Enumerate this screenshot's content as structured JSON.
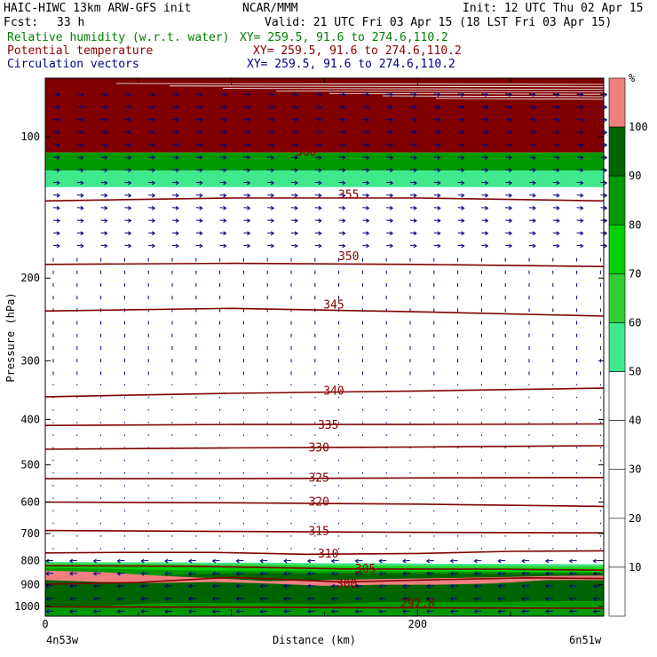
{
  "header": {
    "title_left": "HAIC-HIWC 13km ARW-GFS init",
    "title_center": "NCAR/MMM",
    "init": "Init: 12 UTC Thu 02 Apr 15",
    "fcst_label": "Fcst:",
    "fcst_value": "33 h",
    "valid": "Valid: 21 UTC Fri 03 Apr 15 (18 LST Fri 03 Apr 15)",
    "rh_label": "Relative humidity (w.r.t. water)",
    "rh_xy": "XY= 259.5, 91.6 to 274.6,110.2",
    "pt_label": "Potential temperature",
    "pt_xy": "XY= 259.5, 91.6 to 274.6,110.2",
    "cv_label": "Circulation vectors",
    "cv_xy": "XY= 259.5, 91.6 to 274.6,110.2"
  },
  "colors": {
    "rh_50_60": "#40e88c",
    "rh_60_70": "#32cd32",
    "rh_70_80": "#00d000",
    "rh_80_90": "#009900",
    "rh_90_100": "#006400",
    "rh_over_100": "#f08080",
    "top_band": "#800000",
    "theta": "#800000",
    "vectors": "#000080"
  },
  "chart_data": {
    "type": "cross-section",
    "ylabel": "Pressure (hPa)",
    "xlabel": "Distance (km)",
    "y_scale": "log",
    "ylim": [
      1050,
      75
    ],
    "xlim": [
      0,
      300
    ],
    "yticks": [
      100,
      200,
      300,
      400,
      500,
      600,
      700,
      800,
      900,
      1000
    ],
    "xticks": [
      0,
      200
    ],
    "x_endpoints": [
      "4n53w",
      "6n51w"
    ],
    "colorbar": {
      "unit": "%",
      "levels": [
        10,
        20,
        30,
        40,
        50,
        60,
        70,
        80,
        90,
        100
      ]
    },
    "theta_labels": [
      {
        "text": "360",
        "x": 140,
        "p": 108
      },
      {
        "text": "355",
        "x": 163,
        "p": 133
      },
      {
        "text": "350",
        "x": 163,
        "p": 180
      },
      {
        "text": "345",
        "x": 155,
        "p": 228
      },
      {
        "text": "340",
        "x": 155,
        "p": 348
      },
      {
        "text": "335",
        "x": 152,
        "p": 412
      },
      {
        "text": "330",
        "x": 147,
        "p": 460
      },
      {
        "text": "325",
        "x": 147,
        "p": 533
      },
      {
        "text": "320",
        "x": 147,
        "p": 600
      },
      {
        "text": "315",
        "x": 147,
        "p": 692
      },
      {
        "text": "310",
        "x": 152,
        "p": 774
      },
      {
        "text": "305",
        "x": 172,
        "p": 833
      },
      {
        "text": "300",
        "x": 162,
        "p": 898
      },
      {
        "text": "297.8",
        "x": 200,
        "p": 987
      }
    ],
    "theta_contours": [
      {
        "level": 355,
        "points": [
          [
            0,
            137
          ],
          [
            100,
            135
          ],
          [
            200,
            135
          ],
          [
            300,
            137
          ]
        ]
      },
      {
        "level": 350,
        "points": [
          [
            0,
            187
          ],
          [
            100,
            186
          ],
          [
            200,
            187
          ],
          [
            300,
            189
          ]
        ]
      },
      {
        "level": 345,
        "points": [
          [
            0,
            235
          ],
          [
            100,
            232
          ],
          [
            200,
            236
          ],
          [
            300,
            241
          ]
        ]
      },
      {
        "level": 340,
        "points": [
          [
            0,
            358
          ],
          [
            100,
            352
          ],
          [
            200,
            348
          ],
          [
            300,
            343
          ]
        ]
      },
      {
        "level": 335,
        "points": [
          [
            0,
            412
          ],
          [
            100,
            410
          ],
          [
            200,
            410
          ],
          [
            300,
            409
          ]
        ]
      },
      {
        "level": 330,
        "points": [
          [
            0,
            463
          ],
          [
            100,
            460
          ],
          [
            200,
            458
          ],
          [
            300,
            455
          ]
        ]
      },
      {
        "level": 325,
        "points": [
          [
            0,
            535
          ],
          [
            100,
            535
          ],
          [
            200,
            533
          ],
          [
            300,
            532
          ]
        ]
      },
      {
        "level": 320,
        "points": [
          [
            0,
            600
          ],
          [
            100,
            602
          ],
          [
            200,
            606
          ],
          [
            300,
            613
          ]
        ]
      },
      {
        "level": 315,
        "points": [
          [
            0,
            690
          ],
          [
            100,
            693
          ],
          [
            200,
            696
          ],
          [
            300,
            698
          ]
        ]
      },
      {
        "level": 310,
        "points": [
          [
            0,
            770
          ],
          [
            40,
            768
          ],
          [
            90,
            768
          ],
          [
            140,
            775
          ],
          [
            200,
            772
          ],
          [
            250,
            764
          ],
          [
            300,
            762
          ]
        ]
      },
      {
        "level": 305,
        "points": [
          [
            0,
            820
          ],
          [
            80,
            822
          ],
          [
            160,
            833
          ],
          [
            240,
            834
          ],
          [
            300,
            838
          ]
        ]
      },
      {
        "level": 300,
        "points": [
          [
            0,
            898
          ],
          [
            50,
            890
          ],
          [
            100,
            868
          ],
          [
            160,
            888
          ],
          [
            200,
            880
          ],
          [
            260,
            870
          ],
          [
            300,
            873
          ]
        ]
      },
      {
        "level": 297.8,
        "points": [
          [
            0,
            1003
          ],
          [
            100,
            1005
          ],
          [
            200,
            1008
          ],
          [
            300,
            1010
          ]
        ]
      }
    ]
  }
}
